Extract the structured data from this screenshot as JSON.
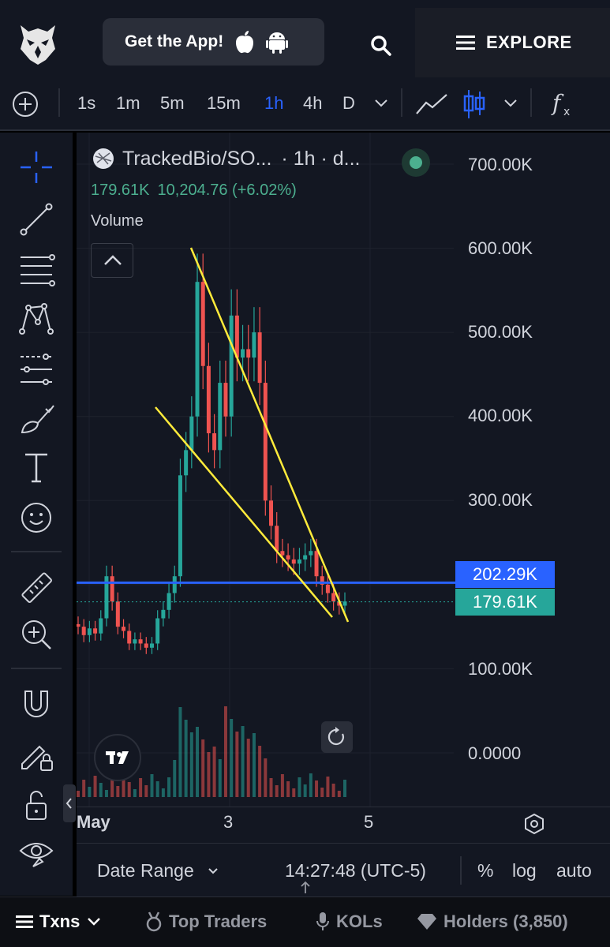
{
  "header": {
    "app_pill_label": "Get the App!",
    "explore_label": "EXPLORE",
    "icons": [
      "owl-logo-icon",
      "apple-icon",
      "android-icon",
      "search-icon",
      "menu-icon"
    ]
  },
  "toolbar": {
    "intervals": [
      "1s",
      "1m",
      "5m",
      "15m",
      "1h",
      "4h",
      "D"
    ],
    "active_interval": "1h",
    "accent_color": "#2962ff"
  },
  "legend": {
    "symbol": "TrackedBio/SO...",
    "interval": "· 1h · d...",
    "price": "179.61K",
    "change": "10,204.76 (+6.02%)",
    "volume_label": "Volume"
  },
  "price_axis": {
    "labels": [
      "700.00K",
      "600.00K",
      "500.00K",
      "400.00K",
      "300.00K",
      "100.00K",
      "0.0000"
    ],
    "blue_tag": "202.29K",
    "green_tag": "179.61K",
    "blue_color": "#2962ff",
    "green_color": "#26a69a"
  },
  "time_axis": {
    "labels": [
      "May",
      "3",
      "5"
    ]
  },
  "bottom_controls": {
    "date_range": "Date Range",
    "time": "14:27:48 (UTC-5)",
    "percent": "%",
    "log": "log",
    "auto": "auto"
  },
  "tabs": [
    {
      "label": "Txns"
    },
    {
      "label": "Top Traders"
    },
    {
      "label": "KOLs"
    },
    {
      "label": "Holders (3,850)"
    }
  ],
  "chart_data": {
    "type": "candlestick",
    "y_unit": "price",
    "ylim": [
      0,
      750000
    ],
    "horizontal_line": 202290,
    "last_price": 179610,
    "close_series": [
      150000,
      140000,
      148000,
      142000,
      160000,
      210000,
      180000,
      150000,
      145000,
      130000,
      135000,
      130000,
      125000,
      130000,
      160000,
      170000,
      190000,
      210000,
      330000,
      360000,
      400000,
      560000,
      460000,
      380000,
      360000,
      440000,
      400000,
      520000,
      470000,
      480000,
      470000,
      500000,
      440000,
      300000,
      270000,
      240000,
      235000,
      230000,
      225000,
      230000,
      235000,
      240000,
      210000,
      200000,
      190000,
      180000,
      175000,
      180000
    ]
  }
}
